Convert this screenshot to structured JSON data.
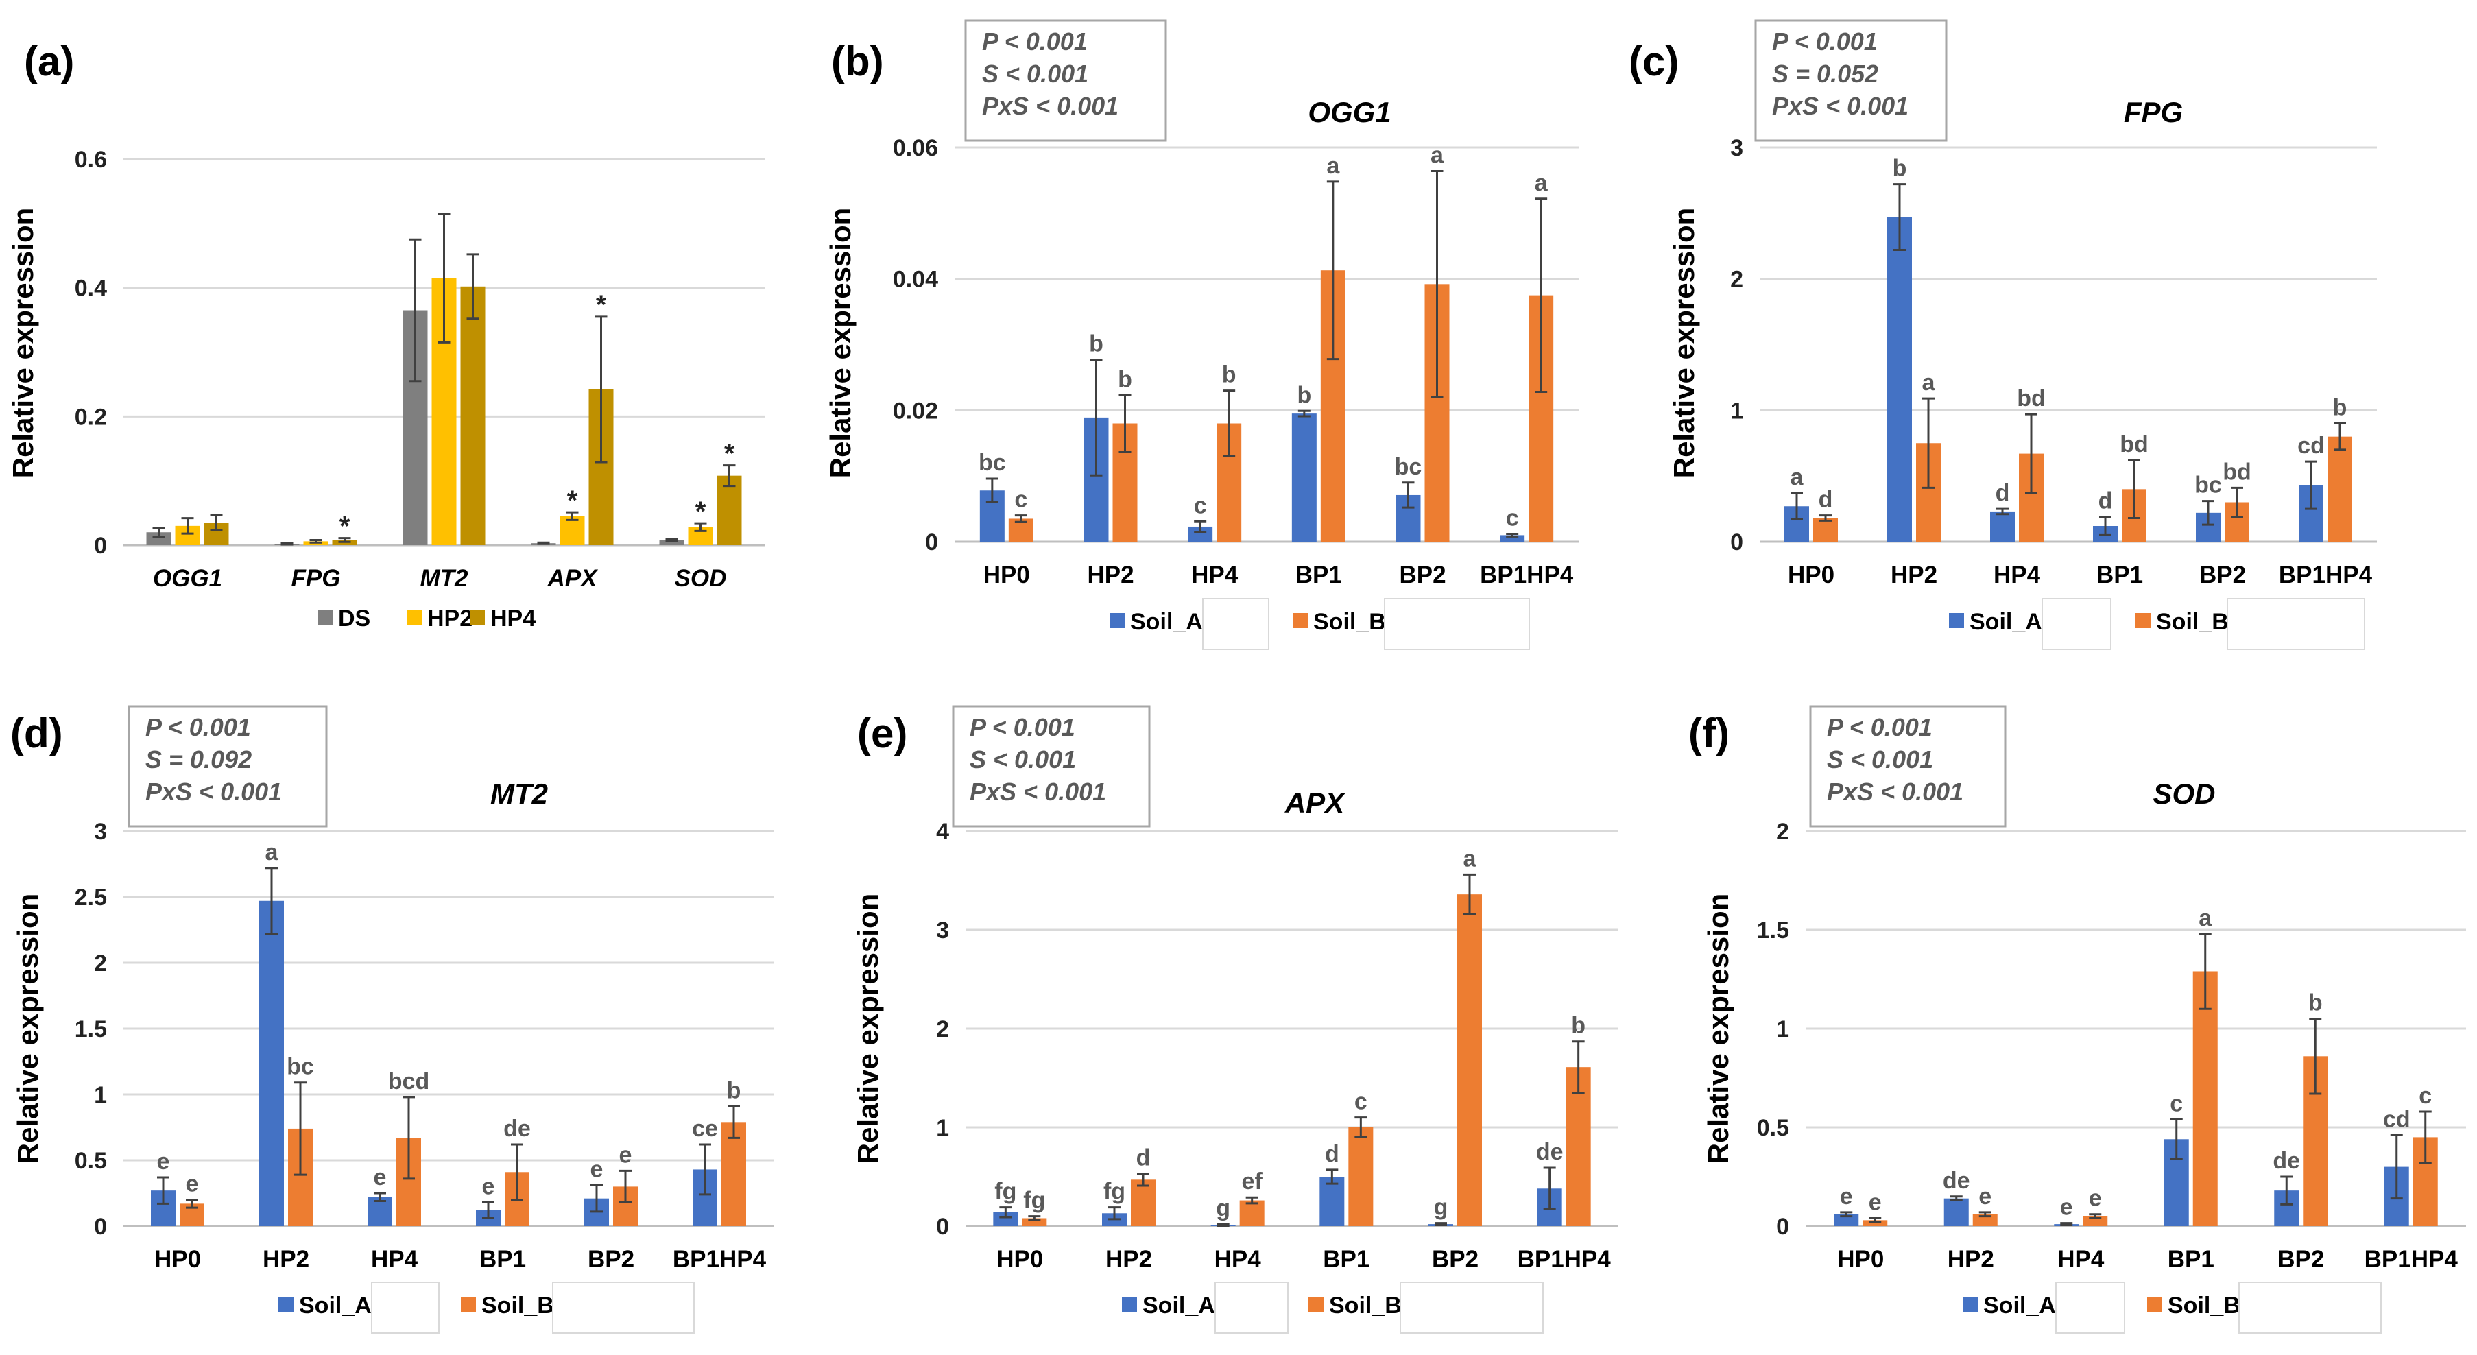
{
  "colors": {
    "soil_a": "#4472C4",
    "soil_b": "#ED7D31",
    "ds": "#7F7F7F",
    "hp2": "#FFC000",
    "hp4": "#BF9000"
  },
  "chart_data": [
    {
      "id": "a",
      "panel_label": "(a)",
      "type": "bar",
      "title": "",
      "ylabel": "Relative expression",
      "xlabel": "",
      "ylim": [
        0,
        0.6
      ],
      "yticks": [
        "0",
        "0.2",
        "0.4",
        "0.6"
      ],
      "ytick_values": [
        0,
        0.2,
        0.4,
        0.6
      ],
      "categories": [
        "OGG1",
        "FPG",
        "MT2",
        "APX",
        "SOD"
      ],
      "categories_italic": true,
      "series": [
        {
          "name": "DS",
          "color_key": "ds",
          "values": [
            0.02,
            0.002,
            0.365,
            0.003,
            0.008
          ],
          "errors": [
            0.007,
            0.001,
            0.11,
            0.001,
            0.002
          ],
          "labels": [
            "",
            "",
            "",
            "",
            ""
          ]
        },
        {
          "name": "HP2",
          "color_key": "hp2",
          "values": [
            0.03,
            0.006,
            0.415,
            0.045,
            0.028
          ],
          "errors": [
            0.012,
            0.002,
            0.1,
            0.006,
            0.006
          ],
          "labels": [
            "",
            "",
            "",
            "*",
            "*"
          ]
        },
        {
          "name": "HP4",
          "color_key": "hp4",
          "values": [
            0.035,
            0.008,
            0.402,
            0.242,
            0.108
          ],
          "errors": [
            0.012,
            0.003,
            0.05,
            0.113,
            0.016
          ],
          "labels": [
            "",
            "*",
            "",
            "*",
            "*"
          ]
        }
      ],
      "stats": null,
      "legend": [
        "DS",
        "HP2",
        "HP4"
      ]
    },
    {
      "id": "b",
      "panel_label": "(b)",
      "type": "bar",
      "title": "OGG1",
      "ylabel": "Relative expression",
      "xlabel": "",
      "ylim": [
        0,
        0.06
      ],
      "yticks": [
        "0",
        "0.02",
        "0.04",
        "0.06"
      ],
      "ytick_values": [
        0,
        0.02,
        0.04,
        0.06
      ],
      "categories": [
        "HP0",
        "HP2",
        "HP4",
        "BP1",
        "BP2",
        "BP1HP4"
      ],
      "categories_italic": false,
      "series": [
        {
          "name": "Soil_A",
          "color_key": "soil_a",
          "values": [
            0.0078,
            0.0189,
            0.0023,
            0.0195,
            0.0071,
            0.001
          ],
          "errors": [
            0.0018,
            0.0088,
            0.0008,
            0.0004,
            0.0019,
            0.0002
          ],
          "labels": [
            "bc",
            "b",
            "c",
            "b",
            "bc",
            "c"
          ]
        },
        {
          "name": "Soil_B",
          "color_key": "soil_b",
          "values": [
            0.0035,
            0.018,
            0.018,
            0.0413,
            0.0392,
            0.0375
          ],
          "errors": [
            0.0005,
            0.0043,
            0.005,
            0.0135,
            0.0172,
            0.0147
          ],
          "labels": [
            "c",
            "b",
            "b",
            "a",
            "a",
            "a"
          ]
        }
      ],
      "stats": [
        "P < 0.001",
        "S < 0.001",
        "PxS < 0.001"
      ],
      "legend": [
        "Soil_A",
        "Soil_B"
      ]
    },
    {
      "id": "c",
      "panel_label": "(c)",
      "type": "bar",
      "title": "FPG",
      "ylabel": "Relative expression",
      "xlabel": "",
      "ylim": [
        0,
        3
      ],
      "yticks": [
        "0",
        "1",
        "2",
        "3"
      ],
      "ytick_values": [
        0,
        1,
        2,
        3
      ],
      "categories": [
        "HP0",
        "HP2",
        "HP4",
        "BP1",
        "BP2",
        "BP1HP4"
      ],
      "categories_italic": false,
      "series": [
        {
          "name": "Soil_A",
          "color_key": "soil_a",
          "values": [
            0.27,
            2.47,
            0.23,
            0.12,
            0.22,
            0.43
          ],
          "errors": [
            0.1,
            0.25,
            0.02,
            0.07,
            0.09,
            0.18
          ],
          "labels": [
            "a",
            "b",
            "d",
            "d",
            "bc",
            "cd"
          ]
        },
        {
          "name": "Soil_B",
          "color_key": "soil_b",
          "values": [
            0.18,
            0.75,
            0.67,
            0.4,
            0.3,
            0.8
          ],
          "errors": [
            0.02,
            0.34,
            0.3,
            0.22,
            0.11,
            0.1
          ],
          "labels": [
            "d",
            "a",
            "bd",
            "bd",
            "bd",
            "b"
          ]
        }
      ],
      "stats": [
        "P < 0.001",
        "S = 0.052",
        "PxS < 0.001"
      ],
      "legend": [
        "Soil_A",
        "Soil_B"
      ]
    },
    {
      "id": "d",
      "panel_label": "(d)",
      "type": "bar",
      "title": "MT2",
      "ylabel": "Relative expression",
      "xlabel": "",
      "ylim": [
        0,
        3
      ],
      "yticks": [
        "0",
        "0.5",
        "1",
        "1.5",
        "2",
        "2.5",
        "3"
      ],
      "ytick_values": [
        0,
        0.5,
        1,
        1.5,
        2,
        2.5,
        3
      ],
      "categories": [
        "HP0",
        "HP2",
        "HP4",
        "BP1",
        "BP2",
        "BP1HP4"
      ],
      "categories_italic": false,
      "series": [
        {
          "name": "Soil_A",
          "color_key": "soil_a",
          "values": [
            0.27,
            2.47,
            0.22,
            0.12,
            0.21,
            0.43
          ],
          "errors": [
            0.1,
            0.25,
            0.03,
            0.06,
            0.1,
            0.19
          ],
          "labels": [
            "e",
            "a",
            "e",
            "e",
            "e",
            "ce"
          ]
        },
        {
          "name": "Soil_B",
          "color_key": "soil_b",
          "values": [
            0.17,
            0.74,
            0.67,
            0.41,
            0.3,
            0.79
          ],
          "errors": [
            0.03,
            0.35,
            0.31,
            0.21,
            0.12,
            0.12
          ],
          "labels": [
            "e",
            "bc",
            "bcd",
            "de",
            "e",
            "b"
          ]
        }
      ],
      "stats": [
        "P < 0.001",
        "S = 0.092",
        "PxS < 0.001"
      ],
      "legend": [
        "Soil_A",
        "Soil_B"
      ]
    },
    {
      "id": "e",
      "panel_label": "(e)",
      "type": "bar",
      "title": "APX",
      "ylabel": "Relative expression",
      "xlabel": "",
      "ylim": [
        0,
        4
      ],
      "yticks": [
        "0",
        "1",
        "2",
        "3",
        "4"
      ],
      "ytick_values": [
        0,
        1,
        2,
        3,
        4
      ],
      "categories": [
        "HP0",
        "HP2",
        "HP4",
        "BP1",
        "BP2",
        "BP1HP4"
      ],
      "categories_italic": false,
      "series": [
        {
          "name": "Soil_A",
          "color_key": "soil_a",
          "values": [
            0.14,
            0.13,
            0.01,
            0.5,
            0.02,
            0.38
          ],
          "errors": [
            0.05,
            0.06,
            0.01,
            0.07,
            0.01,
            0.21
          ],
          "labels": [
            "fg",
            "fg",
            "g",
            "d",
            "g",
            "de"
          ]
        },
        {
          "name": "Soil_B",
          "color_key": "soil_b",
          "values": [
            0.08,
            0.47,
            0.26,
            1.0,
            3.36,
            1.61
          ],
          "errors": [
            0.02,
            0.06,
            0.03,
            0.1,
            0.2,
            0.26
          ],
          "labels": [
            "fg",
            "d",
            "ef",
            "c",
            "a",
            "b"
          ]
        }
      ],
      "stats": [
        "P < 0.001",
        "S < 0.001",
        "PxS < 0.001"
      ],
      "legend": [
        "Soil_A",
        "Soil_B"
      ]
    },
    {
      "id": "f",
      "panel_label": "(f)",
      "type": "bar",
      "title": "SOD",
      "ylabel": "Relative expression",
      "xlabel": "",
      "ylim": [
        0,
        2
      ],
      "yticks": [
        "0",
        "0.5",
        "1",
        "1.5",
        "2"
      ],
      "ytick_values": [
        0,
        0.5,
        1,
        1.5,
        2
      ],
      "categories": [
        "HP0",
        "HP2",
        "HP4",
        "BP1",
        "BP2",
        "BP1HP4"
      ],
      "categories_italic": false,
      "series": [
        {
          "name": "Soil_A",
          "color_key": "soil_a",
          "values": [
            0.06,
            0.14,
            0.01,
            0.44,
            0.18,
            0.3
          ],
          "errors": [
            0.01,
            0.01,
            0.005,
            0.1,
            0.07,
            0.16
          ],
          "labels": [
            "e",
            "de",
            "e",
            "c",
            "de",
            "cd"
          ]
        },
        {
          "name": "Soil_B",
          "color_key": "soil_b",
          "values": [
            0.03,
            0.06,
            0.05,
            1.29,
            0.86,
            0.45
          ],
          "errors": [
            0.01,
            0.01,
            0.01,
            0.19,
            0.19,
            0.13
          ],
          "labels": [
            "e",
            "e",
            "e",
            "a",
            "b",
            "c"
          ]
        }
      ],
      "stats": [
        "P < 0.001",
        "S < 0.001",
        "PxS < 0.001"
      ],
      "legend": [
        "Soil_A",
        "Soil_B"
      ]
    }
  ]
}
